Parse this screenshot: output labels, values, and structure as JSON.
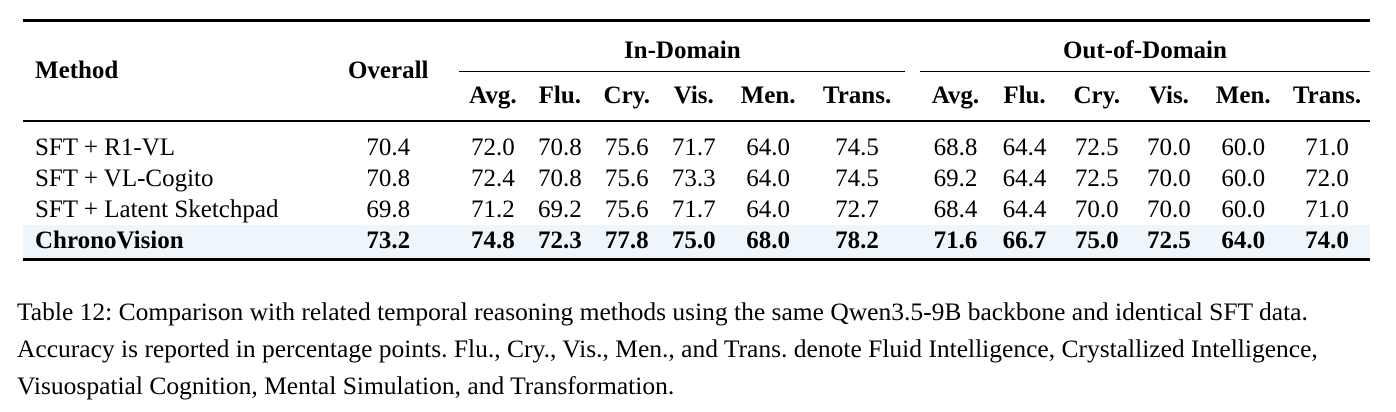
{
  "table": {
    "headers": {
      "method": "Method",
      "overall": "Overall",
      "in_domain": "In-Domain",
      "out_of_domain": "Out-of-Domain",
      "sub": [
        "Avg.",
        "Flu.",
        "Cry.",
        "Vis.",
        "Men.",
        "Trans."
      ]
    },
    "rows": [
      {
        "method": "SFT + R1-VL",
        "overall": "70.4",
        "in": [
          "72.0",
          "70.8",
          "75.6",
          "71.7",
          "64.0",
          "74.5"
        ],
        "out": [
          "68.8",
          "64.4",
          "72.5",
          "70.0",
          "60.0",
          "71.0"
        ]
      },
      {
        "method": "SFT + VL-Cogito",
        "overall": "70.8",
        "in": [
          "72.4",
          "70.8",
          "75.6",
          "73.3",
          "64.0",
          "74.5"
        ],
        "out": [
          "69.2",
          "64.4",
          "72.5",
          "70.0",
          "60.0",
          "72.0"
        ]
      },
      {
        "method": "SFT + Latent Sketchpad",
        "overall": "69.8",
        "in": [
          "71.2",
          "69.2",
          "75.6",
          "71.7",
          "64.0",
          "72.7"
        ],
        "out": [
          "68.4",
          "64.4",
          "70.0",
          "70.0",
          "60.0",
          "71.0"
        ]
      },
      {
        "method": "ChronoVision",
        "overall": "73.2",
        "in": [
          "74.8",
          "72.3",
          "77.8",
          "75.0",
          "68.0",
          "78.2"
        ],
        "out": [
          "71.6",
          "66.7",
          "75.0",
          "72.5",
          "64.0",
          "74.0"
        ]
      }
    ],
    "highlight_color": "#eef5fb"
  },
  "caption": "Table 12: Comparison with related temporal reasoning methods using the same Qwen3.5-9B backbone and identical SFT data. Accuracy is reported in percentage points. Flu., Cry., Vis., Men., and Trans. denote Fluid Intelligence, Crystallized Intelligence, Visuospatial Cognition, Mental Simulation, and Transformation."
}
